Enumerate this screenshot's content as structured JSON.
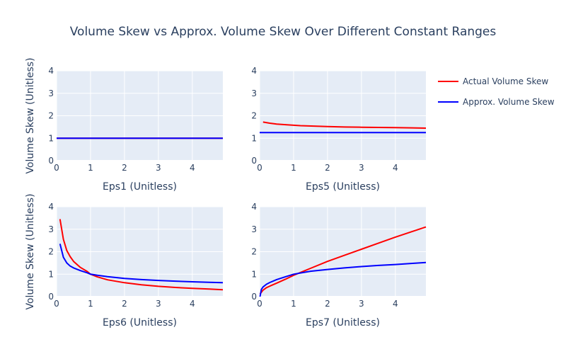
{
  "chart_data": {
    "type": "line",
    "title": "Volume Skew vs Approx. Volume Skew Over Different Constant Ranges",
    "ylabel": "Volume Skew (Unitless)",
    "legend": {
      "placement": "right",
      "entries": [
        {
          "name": "Actual Volume Skew",
          "color": "#ff0000"
        },
        {
          "name": "Approx. Volume Skew",
          "color": "#0000ff"
        }
      ]
    },
    "colors": {
      "plot_bg": "#e5ecf6",
      "grid": "#ffffff",
      "text": "#2a3f5f"
    },
    "xlim": [
      0,
      4.9
    ],
    "ylim": [
      0,
      4
    ],
    "xticks": [
      0,
      1,
      2,
      3,
      4
    ],
    "yticks": [
      0,
      1,
      2,
      3,
      4
    ],
    "subplots": [
      {
        "xlabel": "Eps1 (Unitless)",
        "series": [
          {
            "name": "Actual Volume Skew",
            "x": [
              0,
              1,
              2,
              3,
              4,
              4.9
            ],
            "y": [
              1,
              1,
              1,
              1,
              1,
              1
            ]
          },
          {
            "name": "Approx. Volume Skew",
            "x": [
              0,
              1,
              2,
              3,
              4,
              4.9
            ],
            "y": [
              1,
              1,
              1,
              1,
              1,
              1
            ]
          }
        ]
      },
      {
        "xlabel": "Eps5 (Unitless)",
        "series": [
          {
            "name": "Actual Volume Skew",
            "x": [
              0.1,
              0.3,
              0.5,
              0.8,
              1.2,
              1.6,
              2.0,
              2.5,
              3.0,
              3.5,
              4.0,
              4.5,
              4.9
            ],
            "y": [
              1.72,
              1.67,
              1.63,
              1.6,
              1.56,
              1.54,
              1.52,
              1.5,
              1.49,
              1.48,
              1.47,
              1.46,
              1.45
            ]
          },
          {
            "name": "Approx. Volume Skew",
            "x": [
              0,
              1,
              2,
              3,
              4,
              4.9
            ],
            "y": [
              1.25,
              1.25,
              1.25,
              1.25,
              1.25,
              1.25
            ]
          }
        ]
      },
      {
        "xlabel": "Eps6 (Unitless)",
        "series": [
          {
            "name": "Actual Volume Skew",
            "x": [
              0.1,
              0.2,
              0.3,
              0.4,
              0.5,
              0.7,
              0.9,
              1.0,
              1.2,
              1.5,
              2.0,
              2.5,
              3.0,
              3.5,
              4.0,
              4.5,
              4.9
            ],
            "y": [
              3.45,
              2.55,
              2.05,
              1.78,
              1.57,
              1.3,
              1.12,
              1.0,
              0.88,
              0.75,
              0.62,
              0.53,
              0.46,
              0.41,
              0.37,
              0.34,
              0.31
            ]
          },
          {
            "name": "Approx. Volume Skew",
            "x": [
              0.1,
              0.2,
              0.3,
              0.4,
              0.5,
              0.7,
              0.9,
              1.0,
              1.2,
              1.5,
              2.0,
              2.5,
              3.0,
              3.5,
              4.0,
              4.5,
              4.9
            ],
            "y": [
              2.35,
              1.75,
              1.5,
              1.36,
              1.28,
              1.16,
              1.06,
              1.0,
              0.95,
              0.89,
              0.81,
              0.76,
              0.72,
              0.69,
              0.66,
              0.64,
              0.62
            ]
          }
        ]
      },
      {
        "xlabel": "Eps7 (Unitless)",
        "series": [
          {
            "name": "Actual Volume Skew",
            "x": [
              0.01,
              0.1,
              0.2,
              0.3,
              0.5,
              0.75,
              1.0,
              1.5,
              2.0,
              2.5,
              3.0,
              3.5,
              4.0,
              4.5,
              4.9
            ],
            "y": [
              0.12,
              0.29,
              0.4,
              0.47,
              0.6,
              0.77,
              0.95,
              1.26,
              1.57,
              1.84,
              2.11,
              2.38,
              2.65,
              2.9,
              3.1
            ]
          },
          {
            "name": "Approx. Volume Skew",
            "x": [
              0.01,
              0.05,
              0.1,
              0.2,
              0.3,
              0.5,
              0.75,
              1.0,
              1.5,
              2.0,
              2.5,
              3.0,
              3.5,
              4.0,
              4.5,
              4.9
            ],
            "y": [
              0.0,
              0.32,
              0.43,
              0.55,
              0.63,
              0.76,
              0.88,
              1.0,
              1.13,
              1.21,
              1.28,
              1.34,
              1.39,
              1.43,
              1.48,
              1.52
            ]
          }
        ]
      }
    ]
  }
}
